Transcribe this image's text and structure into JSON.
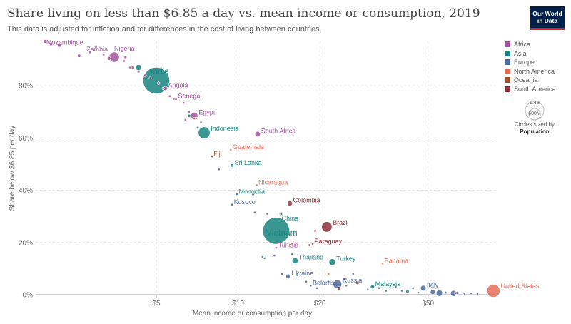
{
  "header": {
    "title": "Share living on less than $6.85 a day vs. mean income or consumption, 2019",
    "subtitle": "This data is adjusted for inflation and for differences in the cost of living between countries.",
    "logo_line1": "Our World",
    "logo_line2": "in Data"
  },
  "size_legend": {
    "max_label": "1.4B",
    "min_label": "600M",
    "caption": "Circles sized by",
    "variable": "Population"
  },
  "chart_data": {
    "type": "scatter",
    "title": "Share living on less than $6.85 a day vs. mean income or consumption, 2019",
    "xlabel": "Mean income or consumption per day",
    "ylabel": "Share below $6.85 per day",
    "x_scale": "log",
    "xlim": [
      1.8,
      90
    ],
    "ylim": [
      0,
      97
    ],
    "x_ticks": [
      {
        "value": 5,
        "label": "$5"
      },
      {
        "value": 10,
        "label": "$10"
      },
      {
        "value": 20,
        "label": "$20"
      },
      {
        "value": 50,
        "label": "$50"
      }
    ],
    "y_ticks": [
      {
        "value": 0,
        "label": "0%"
      },
      {
        "value": 20,
        "label": "20%"
      },
      {
        "value": 40,
        "label": "40%"
      },
      {
        "value": 60,
        "label": "60%"
      },
      {
        "value": 80,
        "label": "80%"
      }
    ],
    "grid": true,
    "legend_position": "right",
    "series": [
      {
        "name": "Africa",
        "color": "#a2559c",
        "points": [
          {
            "label": "Mozambique",
            "x": 2.2,
            "y": 95.5,
            "pop": 30
          },
          {
            "label": "Zambia",
            "x": 2.85,
            "y": 93,
            "pop": 18
          },
          {
            "label": "Nigeria",
            "x": 3.5,
            "y": 91,
            "pop": 200
          },
          {
            "label": "Angola",
            "x": 5.4,
            "y": 79,
            "pop": 32
          },
          {
            "label": "Senegal",
            "x": 5.9,
            "y": 75,
            "pop": 16
          },
          {
            "label": "Egypt",
            "x": 6.9,
            "y": 68.5,
            "pop": 100
          },
          {
            "label": "South Africa",
            "x": 11.8,
            "y": 61.5,
            "pop": 58
          },
          {
            "label": "Tunisia",
            "x": 13.8,
            "y": 18,
            "pop": 12
          },
          {
            "x": 1.95,
            "y": 97,
            "pop": 25
          },
          {
            "x": 2.05,
            "y": 96,
            "pop": 20
          },
          {
            "x": 2.6,
            "y": 91.5,
            "pop": 20
          },
          {
            "x": 3.0,
            "y": 95,
            "pop": 15
          },
          {
            "x": 3.2,
            "y": 92,
            "pop": 12
          },
          {
            "x": 3.35,
            "y": 90.5,
            "pop": 25
          },
          {
            "x": 3.8,
            "y": 89.5,
            "pop": 12
          },
          {
            "x": 3.85,
            "y": 91,
            "pop": 15
          },
          {
            "x": 4.1,
            "y": 87,
            "pop": 18
          },
          {
            "x": 4.3,
            "y": 85.5,
            "pop": 14
          },
          {
            "x": 4.0,
            "y": 87,
            "pop": 10
          },
          {
            "x": 4.55,
            "y": 84,
            "pop": 12
          },
          {
            "x": 4.75,
            "y": 83,
            "pop": 10
          },
          {
            "x": 5.1,
            "y": 81,
            "pop": 14
          },
          {
            "x": 5.3,
            "y": 79,
            "pop": 10
          },
          {
            "x": 5.6,
            "y": 76,
            "pop": 12
          },
          {
            "x": 5.8,
            "y": 75,
            "pop": 9
          },
          {
            "x": 6.3,
            "y": 73.5,
            "pop": 10
          },
          {
            "x": 6.6,
            "y": 70,
            "pop": 8
          },
          {
            "x": 7.0,
            "y": 67.5,
            "pop": 12
          },
          {
            "x": 6.4,
            "y": 67,
            "pop": 8
          },
          {
            "x": 7.3,
            "y": 66,
            "pop": 10
          }
        ]
      },
      {
        "name": "Asia",
        "color": "#18847e",
        "points": [
          {
            "label": "India",
            "x": 5.0,
            "y": 82,
            "pop": 1380
          },
          {
            "label": "Indonesia",
            "x": 7.5,
            "y": 62,
            "pop": 270
          },
          {
            "label": "Sri Lanka",
            "x": 9.5,
            "y": 49.5,
            "pop": 22
          },
          {
            "label": "Mongolia",
            "x": 9.9,
            "y": 38.5,
            "pop": 3
          },
          {
            "label": "China",
            "x": 14.4,
            "y": 31,
            "pop": 12
          },
          {
            "label": "Vietnam",
            "x": 13.8,
            "y": 24.5,
            "pop": 1400
          },
          {
            "label": "Thailand",
            "x": 16.2,
            "y": 13,
            "pop": 70
          },
          {
            "label": "Turkey",
            "x": 22.2,
            "y": 12.5,
            "pop": 84
          },
          {
            "label": "Malaysia",
            "x": 31.2,
            "y": 3,
            "pop": 32
          },
          {
            "x": 4.3,
            "y": 87,
            "pop": 70
          },
          {
            "x": 6.6,
            "y": 68.5,
            "pop": 20
          },
          {
            "x": 7.1,
            "y": 64,
            "pop": 12
          },
          {
            "x": 8.0,
            "y": 52.5,
            "pop": 10
          },
          {
            "x": 15.8,
            "y": 15.5,
            "pop": 8
          },
          {
            "x": 42,
            "y": 1.3,
            "pop": 20
          }
        ]
      },
      {
        "name": "Europe",
        "color": "#4c6a9c",
        "points": [
          {
            "label": "Kosovo",
            "x": 9.5,
            "y": 34.5,
            "pop": 2
          },
          {
            "label": "Ukraine",
            "x": 15.3,
            "y": 7,
            "pop": 44
          },
          {
            "label": "Belarus",
            "x": 18.5,
            "y": 3.5,
            "pop": 9
          },
          {
            "label": "Russia",
            "x": 23.2,
            "y": 4,
            "pop": 145
          },
          {
            "label": "Italy",
            "x": 48,
            "y": 2.5,
            "pop": 60
          },
          {
            "x": 8.5,
            "y": 48,
            "pop": 3
          },
          {
            "x": 11.5,
            "y": 31.5,
            "pop": 3
          },
          {
            "x": 12.8,
            "y": 31,
            "pop": 4
          },
          {
            "x": 12.3,
            "y": 14.5,
            "pop": 4
          },
          {
            "x": 12.5,
            "y": 14,
            "pop": 4
          },
          {
            "x": 13.6,
            "y": 15,
            "pop": 4
          },
          {
            "x": 14.5,
            "y": 8,
            "pop": 5
          },
          {
            "x": 16.5,
            "y": 7.5,
            "pop": 5
          },
          {
            "x": 17.8,
            "y": 5,
            "pop": 5
          },
          {
            "x": 19.5,
            "y": 2.5,
            "pop": 5
          },
          {
            "x": 21.5,
            "y": 5,
            "pop": 6
          },
          {
            "x": 25,
            "y": 3.5,
            "pop": 6
          },
          {
            "x": 26.5,
            "y": 8,
            "pop": 5
          },
          {
            "x": 28.2,
            "y": 5.5,
            "pop": 5
          },
          {
            "x": 30,
            "y": 2,
            "pop": 5
          },
          {
            "x": 33,
            "y": 2.5,
            "pop": 5
          },
          {
            "x": 35,
            "y": 1.5,
            "pop": 5
          },
          {
            "x": 38,
            "y": 3,
            "pop": 6
          },
          {
            "x": 40,
            "y": 1.5,
            "pop": 8
          },
          {
            "x": 44,
            "y": 2.5,
            "pop": 10
          },
          {
            "x": 46,
            "y": 0.8,
            "pop": 10
          },
          {
            "x": 52,
            "y": 1,
            "pop": 45
          },
          {
            "x": 55,
            "y": 0.6,
            "pop": 80
          },
          {
            "x": 58,
            "y": 0.8,
            "pop": 12
          },
          {
            "x": 62,
            "y": 0.5,
            "pop": 67
          },
          {
            "x": 64,
            "y": 0.7,
            "pop": 17
          },
          {
            "x": 68,
            "y": 0.4,
            "pop": 10
          },
          {
            "x": 72,
            "y": 0.5,
            "pop": 9
          },
          {
            "x": 76,
            "y": 0.3,
            "pop": 6
          }
        ]
      },
      {
        "name": "North America",
        "color": "#e56e5a",
        "points": [
          {
            "label": "Guatemala",
            "x": 9.4,
            "y": 55.5,
            "pop": 4
          },
          {
            "label": "Nicaragua",
            "x": 11.7,
            "y": 42,
            "pop": 3
          },
          {
            "label": "Panama",
            "x": 34,
            "y": 12,
            "pop": 4
          },
          {
            "label": "United States",
            "x": 87,
            "y": 1.5,
            "pop": 330
          },
          {
            "x": 14.4,
            "y": 31,
            "pop": 30
          },
          {
            "x": 15.8,
            "y": 19.5,
            "pop": 5
          },
          {
            "x": 21.5,
            "y": 8,
            "pop": 5
          }
        ]
      },
      {
        "name": "Oceania",
        "color": "#9a5129",
        "points": [
          {
            "label": "Fiji",
            "x": 8.0,
            "y": 53,
            "pop": 3
          },
          {
            "x": 6.9,
            "y": 67.5,
            "pop": 5
          }
        ]
      },
      {
        "name": "South America",
        "color": "#883039",
        "points": [
          {
            "label": "Colombia",
            "x": 15.5,
            "y": 35,
            "pop": 50
          },
          {
            "label": "Brazil",
            "x": 21.2,
            "y": 26,
            "pop": 212
          },
          {
            "label": "Paraguay",
            "x": 18.8,
            "y": 19.5,
            "pop": 7
          },
          {
            "x": 19.2,
            "y": 24.5,
            "pop": 6
          },
          {
            "x": 18.3,
            "y": 19,
            "pop": 8
          },
          {
            "x": 24.5,
            "y": 6,
            "pop": 11
          },
          {
            "x": 23.5,
            "y": 2.5,
            "pop": 20
          },
          {
            "x": 27.5,
            "y": 4.5,
            "pop": 19
          },
          {
            "x": 63,
            "y": 0.6,
            "pop": 10
          }
        ]
      }
    ]
  }
}
